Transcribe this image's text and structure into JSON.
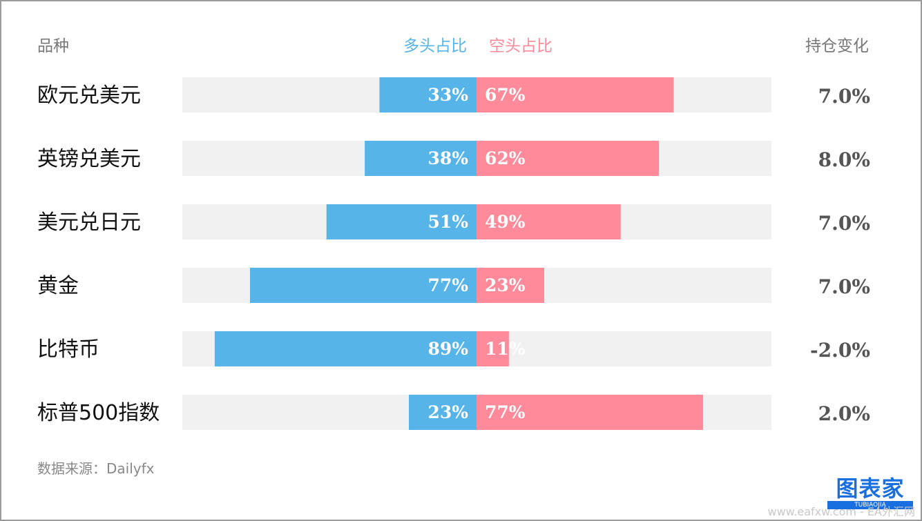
{
  "headers": {
    "name": "品种",
    "long": "多头占比",
    "short": "空头占比",
    "change": "持仓变化"
  },
  "colors": {
    "long": "#56b4e9",
    "short": "#ff8a9a",
    "track": "#f1f1f1",
    "name_text": "#111111",
    "change_text": "#555555"
  },
  "chart_data": {
    "type": "bar",
    "orientation": "horizontal diverging",
    "categories": [
      "欧元兑美元",
      "英镑兑美元",
      "美元兑日元",
      "黄金",
      "比特币",
      "标普500指数"
    ],
    "series": [
      {
        "name": "多头占比",
        "values": [
          33,
          38,
          51,
          77,
          89,
          23
        ]
      },
      {
        "name": "空头占比",
        "values": [
          67,
          62,
          49,
          23,
          11,
          77
        ]
      }
    ],
    "value_labels": {
      "long": [
        "33%",
        "38%",
        "51%",
        "77%",
        "89%",
        "23%"
      ],
      "short": [
        "67%",
        "62%",
        "49%",
        "23%",
        "11%",
        "77%"
      ]
    },
    "position_change": [
      "7.0%",
      "8.0%",
      "7.0%",
      "7.0%",
      "-2.0%",
      "2.0%"
    ],
    "xlim": [
      -100,
      100
    ],
    "grid": false
  },
  "source": "数据来源：Dailyfx",
  "logo": {
    "main": "图表家",
    "sub": "TUBIAOJIA"
  },
  "watermark": "www.eafxw.com - EA外汇网"
}
